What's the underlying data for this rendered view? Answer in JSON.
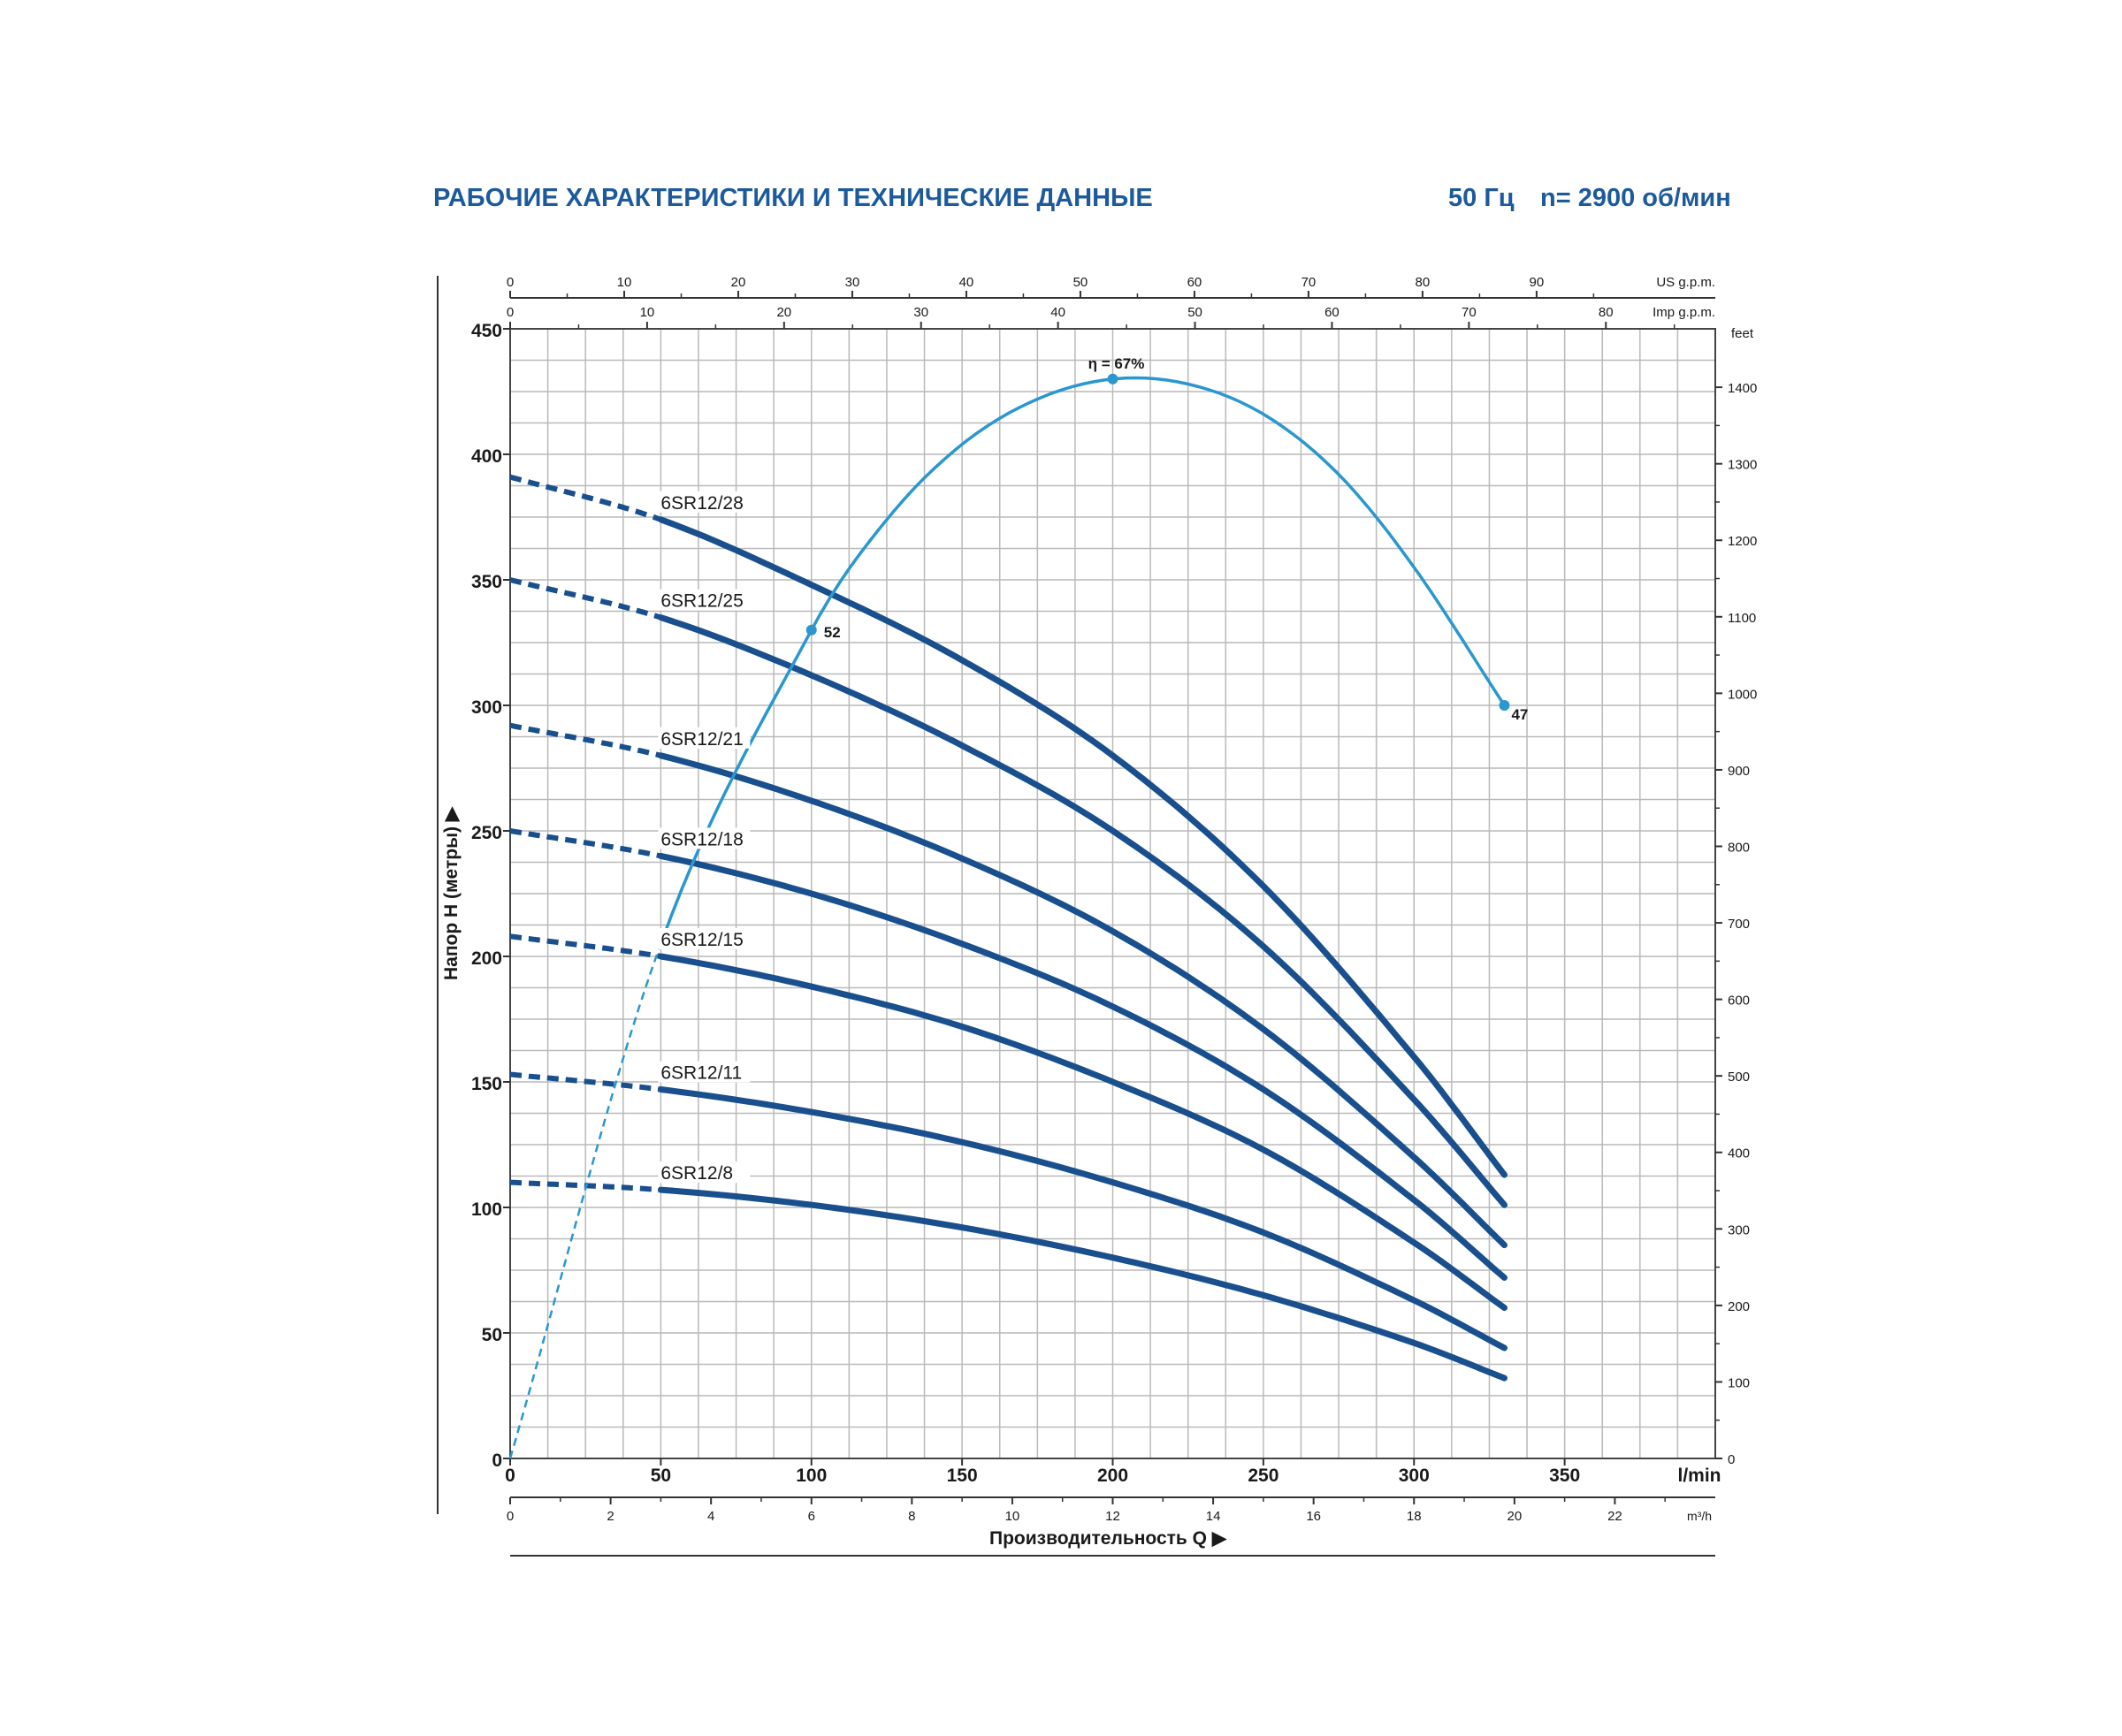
{
  "header": {
    "title": "РАБОЧИЕ ХАРАКТЕРИСТИКИ И ТЕХНИЧЕСКИЕ ДАННЫЕ",
    "frequency": "50 Гц",
    "speed": "n= 2900 об/мин"
  },
  "colors": {
    "header": "#1d5a9c",
    "curve": "#1a4f8e",
    "efficiency": "#2a97cf",
    "grid": "#b9b9b9",
    "text": "#1a1a1a"
  },
  "chart_data": {
    "type": "line",
    "xlabel": "Производительность Q",
    "ylabel": "Напор H (метры)",
    "xlim": [
      0,
      400
    ],
    "ylim": [
      0,
      450
    ],
    "grid": true,
    "x_unit": "l/min",
    "x_ticks": [
      0,
      50,
      100,
      150,
      200,
      250,
      300,
      350
    ],
    "y_ticks": [
      0,
      50,
      100,
      150,
      200,
      250,
      300,
      350,
      400,
      450
    ],
    "secondary_axes": {
      "us_gpm": {
        "label": "US g.p.m.",
        "ticks": [
          0,
          10,
          20,
          30,
          40,
          50,
          60,
          70,
          80,
          90
        ]
      },
      "imp_gpm": {
        "label": "Imp g.p.m.",
        "ticks": [
          0,
          10,
          20,
          30,
          40,
          50,
          60,
          70,
          80
        ]
      },
      "m3h": {
        "label": "m³/h",
        "ticks": [
          0,
          2,
          4,
          6,
          8,
          10,
          12,
          14,
          16,
          18,
          20,
          22
        ]
      },
      "feet": {
        "label": "feet",
        "ticks": [
          0,
          100,
          200,
          300,
          400,
          500,
          600,
          700,
          800,
          900,
          1000,
          1100,
          1200,
          1300,
          1400
        ]
      }
    },
    "dashed_until_x": 50,
    "series": [
      {
        "name": "6SR12/28",
        "x": [
          0,
          50,
          100,
          150,
          200,
          250,
          300,
          330
        ],
        "y": [
          391,
          374,
          348,
          318,
          280,
          228,
          160,
          113
        ]
      },
      {
        "name": "6SR12/25",
        "x": [
          0,
          50,
          100,
          150,
          200,
          250,
          300,
          330
        ],
        "y": [
          350,
          335,
          312,
          284,
          250,
          204,
          143,
          101
        ]
      },
      {
        "name": "6SR12/21",
        "x": [
          0,
          50,
          100,
          150,
          200,
          250,
          300,
          330
        ],
        "y": [
          292,
          280,
          262,
          239,
          210,
          171,
          120,
          85
        ]
      },
      {
        "name": "6SR12/18",
        "x": [
          0,
          50,
          100,
          150,
          200,
          250,
          300,
          330
        ],
        "y": [
          250,
          240,
          225,
          205,
          180,
          147,
          103,
          72
        ]
      },
      {
        "name": "6SR12/15",
        "x": [
          0,
          50,
          100,
          150,
          200,
          250,
          300,
          330
        ],
        "y": [
          208,
          200,
          188,
          172,
          150,
          123,
          86,
          60
        ]
      },
      {
        "name": "6SR12/11",
        "x": [
          0,
          50,
          100,
          150,
          200,
          250,
          300,
          330
        ],
        "y": [
          153,
          147,
          138,
          126,
          110,
          90,
          63,
          44
        ]
      },
      {
        "name": "6SR12/8",
        "x": [
          0,
          50,
          100,
          150,
          200,
          250,
          300,
          330
        ],
        "y": [
          110,
          107,
          101,
          92,
          80,
          65,
          46,
          32
        ]
      }
    ],
    "efficiency_curve": {
      "x": [
        0,
        50,
        100,
        125,
        150,
        175,
        200,
        225,
        250,
        275,
        300,
        330
      ],
      "y": [
        0,
        205,
        330,
        374,
        404,
        422,
        430,
        428,
        416,
        392,
        355,
        300
      ],
      "dashed_until_x": 50,
      "points": [
        {
          "x": 100,
          "y": 330,
          "label": "52"
        },
        {
          "x": 200,
          "y": 430,
          "label": "η = 67%"
        },
        {
          "x": 330,
          "y": 300,
          "label": "47"
        }
      ]
    }
  }
}
